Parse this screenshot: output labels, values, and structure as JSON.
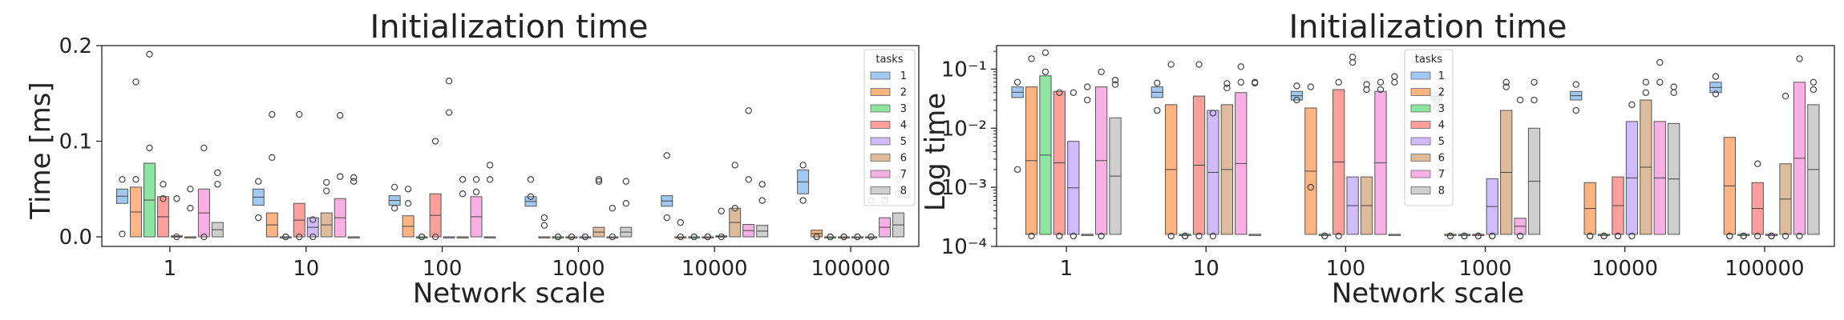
{
  "figure": {
    "charts": [
      {
        "title": "Initialization time",
        "xlabel": "Network scale",
        "ylabel": "Time [ms]",
        "scale": "linear",
        "yticks": [
          "0.0",
          "0.1",
          "0.2"
        ],
        "legend_position": "top-right"
      },
      {
        "title": "Initialization time",
        "xlabel": "Network scale",
        "ylabel": "Log time",
        "scale": "log",
        "yticks": [
          "10⁻⁴",
          "10⁻³",
          "10⁻²",
          "10⁻¹"
        ],
        "legend_position": "upper-center"
      }
    ]
  },
  "chart_data": [
    {
      "type": "boxen",
      "title": "Initialization time",
      "xlabel": "Network scale",
      "ylabel": "Time [ms]",
      "ylim": [
        -0.01,
        0.2
      ],
      "grid": false,
      "legend": {
        "title": "tasks",
        "placement": "top-right",
        "entries": [
          "1",
          "2",
          "3",
          "4",
          "5",
          "6",
          "7",
          "8"
        ]
      },
      "categories": [
        "1",
        "10",
        "100",
        "1000",
        "10000",
        "100000"
      ],
      "colors": [
        "#a1c9f4",
        "#ffb482",
        "#8de5a1",
        "#ff9f9b",
        "#d0bbff",
        "#debb9b",
        "#fab0e4",
        "#cfcfcf"
      ],
      "series": [
        {
          "name": "1",
          "boxes": [
            [
              0.035,
              0.05
            ],
            [
              0.033,
              0.05
            ],
            [
              0.033,
              0.043
            ],
            [
              0.032,
              0.042
            ],
            [
              0.032,
              0.043
            ],
            [
              0.045,
              0.07
            ]
          ],
          "outliers": [
            [
              0.06,
              0.003
            ],
            [
              0.058,
              0.02
            ],
            [
              0.052,
              0.03
            ],
            [
              0.06,
              0.042
            ],
            [
              0.085,
              0.02
            ],
            [
              0.075,
              0.038
            ]
          ]
        },
        {
          "name": "2",
          "boxes": [
            [
              0.0,
              0.052
            ],
            [
              0.0,
              0.025
            ],
            [
              0.0,
              0.022
            ],
            [
              0.0,
              0.0
            ],
            [
              0.0,
              0.0
            ],
            [
              0.0,
              0.007
            ]
          ],
          "outliers": [
            [
              0.162,
              0.06
            ],
            [
              0.128,
              0.083
            ],
            [
              0.05,
              0.035
            ],
            [
              0.012,
              0.02
            ],
            [
              0.015,
              0.0
            ],
            [
              0.0,
              0.0
            ]
          ]
        },
        {
          "name": "3",
          "boxes": [
            [
              0.0,
              0.077
            ],
            [
              0.0,
              0.0
            ],
            [
              0.0,
              0.0
            ],
            [
              0.0,
              0.0
            ],
            [
              0.0,
              0.0
            ],
            [
              0.0,
              0.0
            ]
          ],
          "outliers": [
            [
              0.191,
              0.093
            ],
            [
              0.0,
              0.0
            ],
            [
              0.0,
              0.0
            ],
            [
              0.0,
              0.0
            ],
            [
              0.0,
              0.0
            ],
            [
              0.0,
              0.0
            ]
          ]
        },
        {
          "name": "4",
          "boxes": [
            [
              0.0,
              0.042
            ],
            [
              0.0,
              0.035
            ],
            [
              0.0,
              0.045
            ],
            [
              0.0,
              0.0
            ],
            [
              0.0,
              0.0
            ],
            [
              0.0,
              0.0
            ]
          ],
          "outliers": [
            [
              0.055,
              0.04
            ],
            [
              0.128,
              0.0
            ],
            [
              0.1,
              0.0
            ],
            [
              0.0,
              0.0
            ],
            [
              0.0,
              0.0
            ],
            [
              0.0,
              0.0
            ]
          ]
        },
        {
          "name": "5",
          "boxes": [
            [
              0.0,
              0.001
            ],
            [
              0.0,
              0.02
            ],
            [
              0.0,
              0.0
            ],
            [
              0.0,
              0.0
            ],
            [
              0.0,
              0.001
            ],
            [
              0.0,
              0.0
            ]
          ],
          "outliers": [
            [
              0.04,
              0.0
            ],
            [
              0.018,
              0.0
            ],
            [
              0.163,
              0.13
            ],
            [
              0.0,
              0.0
            ],
            [
              0.027,
              0.0
            ],
            [
              0.0,
              0.0
            ]
          ]
        },
        {
          "name": "6",
          "boxes": [
            [
              0.0,
              0.0
            ],
            [
              0.0,
              0.025
            ],
            [
              0.0,
              0.0
            ],
            [
              0.0,
              0.01
            ],
            [
              0.0,
              0.03
            ],
            [
              0.0,
              0.0
            ]
          ],
          "outliers": [
            [
              0.05,
              0.03
            ],
            [
              0.057,
              0.048
            ],
            [
              0.06,
              0.045
            ],
            [
              0.06,
              0.058
            ],
            [
              0.03,
              0.075
            ],
            [
              0.038,
              0.0
            ]
          ]
        },
        {
          "name": "7",
          "boxes": [
            [
              0.0,
              0.05
            ],
            [
              0.0,
              0.04
            ],
            [
              0.0,
              0.042
            ],
            [
              0.0,
              0.0
            ],
            [
              0.0,
              0.013
            ],
            [
              0.0,
              0.02
            ]
          ],
          "outliers": [
            [
              0.093,
              0.0
            ],
            [
              0.127,
              0.063
            ],
            [
              0.06,
              0.047
            ],
            [
              0.03,
              0.0
            ],
            [
              0.132,
              0.06
            ],
            [
              0.043,
              0.038
            ]
          ]
        },
        {
          "name": "8",
          "boxes": [
            [
              0.0,
              0.015
            ],
            [
              0.0,
              0.0
            ],
            [
              0.0,
              0.0
            ],
            [
              0.0,
              0.01
            ],
            [
              0.0,
              0.012
            ],
            [
              0.0,
              0.025
            ]
          ],
          "outliers": [
            [
              0.067,
              0.055
            ],
            [
              0.062,
              0.058
            ],
            [
              0.075,
              0.06
            ],
            [
              0.058,
              0.035
            ],
            [
              0.055,
              0.038
            ],
            [
              0.06,
              0.045
            ]
          ]
        }
      ]
    },
    {
      "type": "boxen",
      "title": "Initialization time",
      "xlabel": "Network scale",
      "ylabel": "Log time",
      "yscale": "log",
      "ylim": [
        0.0001,
        0.25
      ],
      "grid": false,
      "legend": {
        "title": "tasks",
        "placement": "upper-center",
        "entries": [
          "1",
          "2",
          "3",
          "4",
          "5",
          "6",
          "7",
          "8"
        ]
      },
      "categories": [
        "1",
        "10",
        "100",
        "1000",
        "10000",
        "100000"
      ],
      "colors": [
        "#a1c9f4",
        "#ffb482",
        "#8de5a1",
        "#ff9f9b",
        "#d0bbff",
        "#debb9b",
        "#fab0e4",
        "#cfcfcf"
      ],
      "series": [
        {
          "name": "1",
          "boxes": [
            [
              0.033,
              0.05
            ],
            [
              0.033,
              0.05
            ],
            [
              0.03,
              0.042
            ],
            [
              0.03,
              0.04
            ],
            [
              0.03,
              0.042
            ],
            [
              0.04,
              0.06
            ]
          ],
          "outliers": [
            [
              0.06,
              0.002
            ],
            [
              0.058,
              0.02
            ],
            [
              0.052,
              0.03
            ],
            [
              0.03,
              0.022
            ],
            [
              0.055,
              0.02
            ],
            [
              0.075,
              0.038
            ]
          ]
        },
        {
          "name": "2",
          "boxes": [
            [
              0.00016,
              0.05
            ],
            [
              0.00016,
              0.025
            ],
            [
              0.00016,
              0.022
            ],
            [
              0.00016,
              0.00016
            ],
            [
              0.00016,
              0.0012
            ],
            [
              0.00016,
              0.007
            ]
          ],
          "outliers": [
            [
              0.15,
              0.00015
            ],
            [
              0.12,
              0.00015
            ],
            [
              0.05,
              0.001
            ],
            [
              0.00015,
              0.00015
            ],
            [
              0.00015,
              0.00015
            ],
            [
              0.00015,
              0.00015
            ]
          ]
        },
        {
          "name": "3",
          "boxes": [
            [
              0.00016,
              0.077
            ],
            [
              0.00016,
              0.00016
            ],
            [
              0.00016,
              0.00016
            ],
            [
              0.00016,
              0.00016
            ],
            [
              0.00016,
              0.00016
            ],
            [
              0.00016,
              0.00016
            ]
          ],
          "outliers": [
            [
              0.19,
              0.09
            ],
            [
              0.00015,
              0.00015
            ],
            [
              0.00015,
              0.00015
            ],
            [
              0.00015,
              0.00015
            ],
            [
              0.00015,
              0.00015
            ],
            [
              0.00015,
              0.00015
            ]
          ]
        },
        {
          "name": "4",
          "boxes": [
            [
              0.00016,
              0.042
            ],
            [
              0.00016,
              0.035
            ],
            [
              0.00016,
              0.045
            ],
            [
              0.00016,
              0.00016
            ],
            [
              0.00016,
              0.0015
            ],
            [
              0.00016,
              0.0012
            ]
          ],
          "outliers": [
            [
              0.04,
              0.00015
            ],
            [
              0.12,
              0.00015
            ],
            [
              0.06,
              0.00015
            ],
            [
              0.00015,
              0.00015
            ],
            [
              0.00015,
              0.00015
            ],
            [
              0.0025,
              0.00015
            ]
          ]
        },
        {
          "name": "5",
          "boxes": [
            [
              0.00016,
              0.006
            ],
            [
              0.00016,
              0.02
            ],
            [
              0.00016,
              0.0015
            ],
            [
              0.00016,
              0.0014
            ],
            [
              0.00016,
              0.013
            ],
            [
              0.00016,
              0.00016
            ]
          ],
          "outliers": [
            [
              0.04,
              0.00015
            ],
            [
              0.018,
              0.00015
            ],
            [
              0.16,
              0.13
            ],
            [
              0.00015,
              0.00015
            ],
            [
              0.025,
              0.00015
            ],
            [
              0.00015,
              0.00015
            ]
          ]
        },
        {
          "name": "6",
          "boxes": [
            [
              0.00016,
              0.00016
            ],
            [
              0.00016,
              0.025
            ],
            [
              0.00016,
              0.0015
            ],
            [
              0.00016,
              0.02
            ],
            [
              0.00016,
              0.03
            ],
            [
              0.00016,
              0.0025
            ]
          ],
          "outliers": [
            [
              0.05,
              0.03
            ],
            [
              0.057,
              0.048
            ],
            [
              0.055,
              0.045
            ],
            [
              0.06,
              0.05
            ],
            [
              0.04,
              0.06
            ],
            [
              0.035,
              0.00015
            ]
          ]
        },
        {
          "name": "7",
          "boxes": [
            [
              0.00016,
              0.05
            ],
            [
              0.00016,
              0.04
            ],
            [
              0.00016,
              0.042
            ],
            [
              0.00016,
              0.0003
            ],
            [
              0.00016,
              0.013
            ],
            [
              0.00016,
              0.06
            ]
          ],
          "outliers": [
            [
              0.09,
              0.00015
            ],
            [
              0.11,
              0.06
            ],
            [
              0.06,
              0.045
            ],
            [
              0.03,
              0.00015
            ],
            [
              0.13,
              0.06
            ],
            [
              0.15,
              0.00015
            ]
          ]
        },
        {
          "name": "8",
          "boxes": [
            [
              0.00016,
              0.015
            ],
            [
              0.00016,
              0.00016
            ],
            [
              0.00016,
              0.00016
            ],
            [
              0.00016,
              0.01
            ],
            [
              0.00016,
              0.012
            ],
            [
              0.00016,
              0.025
            ]
          ],
          "outliers": [
            [
              0.065,
              0.055
            ],
            [
              0.06,
              0.058
            ],
            [
              0.075,
              0.06
            ],
            [
              0.06,
              0.03
            ],
            [
              0.05,
              0.04
            ],
            [
              0.06,
              0.045
            ]
          ]
        }
      ]
    }
  ]
}
